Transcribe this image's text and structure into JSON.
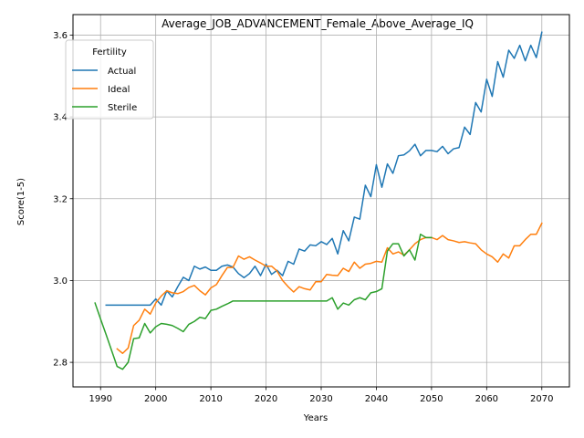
{
  "chart_data": {
    "type": "line",
    "title": "Average_JOB_ADVANCEMENT_Female_Above_Average_IQ",
    "xlabel": "Years",
    "ylabel": "Score(1-5)",
    "xlim": [
      1985,
      2075
    ],
    "ylim": [
      2.74,
      3.65
    ],
    "xticks": [
      1990,
      2000,
      2010,
      2020,
      2030,
      2040,
      2050,
      2060,
      2070
    ],
    "yticks": [
      2.8,
      3.0,
      3.2,
      3.4,
      3.6
    ],
    "ytick_labels": [
      "2.8",
      "3.0",
      "3.2",
      "3.4",
      "3.6"
    ],
    "grid": true,
    "legend": {
      "title": "Fertility",
      "placement": "upper-left"
    },
    "series": [
      {
        "name": "Actual",
        "color": "#1f77b4",
        "x": [
          1991,
          1992,
          1993,
          1994,
          1995,
          1996,
          1997,
          1998,
          1999,
          2000,
          2001,
          2002,
          2003,
          2004,
          2005,
          2006,
          2007,
          2008,
          2009,
          2010,
          2011,
          2012,
          2013,
          2014,
          2015,
          2016,
          2017,
          2018,
          2019,
          2020,
          2021,
          2022,
          2023,
          2024,
          2025,
          2026,
          2027,
          2028,
          2029,
          2030,
          2031,
          2032,
          2033,
          2034,
          2035,
          2036,
          2037,
          2038,
          2039,
          2040,
          2041,
          2042,
          2043,
          2044,
          2045,
          2046,
          2047,
          2048,
          2049,
          2050,
          2051,
          2052,
          2053,
          2054,
          2055,
          2056,
          2057,
          2058,
          2059,
          2060,
          2061,
          2062,
          2063,
          2064,
          2065,
          2066,
          2067,
          2068,
          2069,
          2070
        ],
        "values": [
          2.94,
          2.94,
          2.94,
          2.94,
          2.94,
          2.94,
          2.94,
          2.94,
          2.94,
          2.955,
          2.94,
          2.975,
          2.96,
          2.985,
          3.008,
          3.0,
          3.035,
          3.028,
          3.033,
          3.025,
          3.025,
          3.035,
          3.038,
          3.033,
          3.017,
          3.007,
          3.017,
          3.035,
          3.012,
          3.04,
          3.015,
          3.025,
          3.012,
          3.047,
          3.04,
          3.077,
          3.072,
          3.087,
          3.085,
          3.095,
          3.088,
          3.103,
          3.065,
          3.122,
          3.097,
          3.155,
          3.15,
          3.233,
          3.205,
          3.283,
          3.228,
          3.285,
          3.262,
          3.305,
          3.307,
          3.317,
          3.333,
          3.305,
          3.318,
          3.318,
          3.315,
          3.328,
          3.31,
          3.322,
          3.325,
          3.375,
          3.357,
          3.435,
          3.412,
          3.492,
          3.45,
          3.535,
          3.497,
          3.563,
          3.543,
          3.575,
          3.537,
          3.575,
          3.545,
          3.607
        ]
      },
      {
        "name": "Ideal",
        "color": "#ff7f0e",
        "x": [
          1993,
          1994,
          1995,
          1996,
          1997,
          1998,
          1999,
          2000,
          2001,
          2002,
          2003,
          2004,
          2005,
          2006,
          2007,
          2008,
          2009,
          2010,
          2011,
          2012,
          2013,
          2014,
          2015,
          2016,
          2017,
          2018,
          2019,
          2020,
          2021,
          2022,
          2023,
          2024,
          2025,
          2026,
          2027,
          2028,
          2029,
          2030,
          2031,
          2032,
          2033,
          2034,
          2035,
          2036,
          2037,
          2038,
          2039,
          2040,
          2041,
          2042,
          2043,
          2044,
          2045,
          2046,
          2047,
          2048,
          2049,
          2050,
          2051,
          2052,
          2053,
          2054,
          2055,
          2056,
          2057,
          2058,
          2059,
          2060,
          2061,
          2062,
          2063,
          2064,
          2065,
          2066,
          2067,
          2068,
          2069,
          2070
        ],
        "values": [
          2.833,
          2.822,
          2.835,
          2.89,
          2.903,
          2.93,
          2.918,
          2.945,
          2.962,
          2.975,
          2.97,
          2.968,
          2.973,
          2.983,
          2.988,
          2.975,
          2.965,
          2.982,
          2.99,
          3.012,
          3.032,
          3.032,
          3.06,
          3.052,
          3.058,
          3.05,
          3.043,
          3.035,
          3.035,
          3.023,
          3.0,
          2.985,
          2.972,
          2.985,
          2.98,
          2.977,
          2.997,
          2.997,
          3.015,
          3.013,
          3.012,
          3.03,
          3.022,
          3.045,
          3.03,
          3.04,
          3.042,
          3.047,
          3.045,
          3.08,
          3.065,
          3.07,
          3.062,
          3.075,
          3.09,
          3.1,
          3.105,
          3.105,
          3.1,
          3.11,
          3.1,
          3.097,
          3.093,
          3.095,
          3.092,
          3.09,
          3.075,
          3.065,
          3.058,
          3.045,
          3.065,
          3.055,
          3.085,
          3.085,
          3.1,
          3.113,
          3.113,
          3.14
        ]
      },
      {
        "name": "Sterile",
        "color": "#2ca02c",
        "x": [
          1989,
          1990,
          1991,
          1992,
          1993,
          1994,
          1995,
          1996,
          1997,
          1998,
          1999,
          2000,
          2001,
          2002,
          2003,
          2004,
          2005,
          2006,
          2007,
          2008,
          2009,
          2010,
          2011,
          2012,
          2013,
          2014,
          2015,
          2016,
          2017,
          2018,
          2019,
          2020,
          2021,
          2022,
          2023,
          2024,
          2025,
          2026,
          2027,
          2028,
          2029,
          2030,
          2031,
          2032,
          2033,
          2034,
          2035,
          2036,
          2037,
          2038,
          2039,
          2040,
          2041,
          2042,
          2043,
          2044,
          2045,
          2046,
          2047,
          2048,
          2049,
          2050
        ],
        "values": [
          2.945,
          2.906,
          2.868,
          2.829,
          2.79,
          2.783,
          2.8,
          2.858,
          2.86,
          2.895,
          2.872,
          2.887,
          2.895,
          2.893,
          2.89,
          2.883,
          2.875,
          2.893,
          2.9,
          2.91,
          2.907,
          2.927,
          2.93,
          2.937,
          2.943,
          2.95,
          2.95,
          2.95,
          2.95,
          2.95,
          2.95,
          2.95,
          2.95,
          2.95,
          2.95,
          2.95,
          2.95,
          2.95,
          2.95,
          2.95,
          2.95,
          2.95,
          2.95,
          2.958,
          2.93,
          2.945,
          2.94,
          2.953,
          2.958,
          2.953,
          2.97,
          2.973,
          2.98,
          3.072,
          3.09,
          3.09,
          3.06,
          3.075,
          3.05,
          3.113,
          3.105,
          3.105
        ]
      }
    ]
  }
}
